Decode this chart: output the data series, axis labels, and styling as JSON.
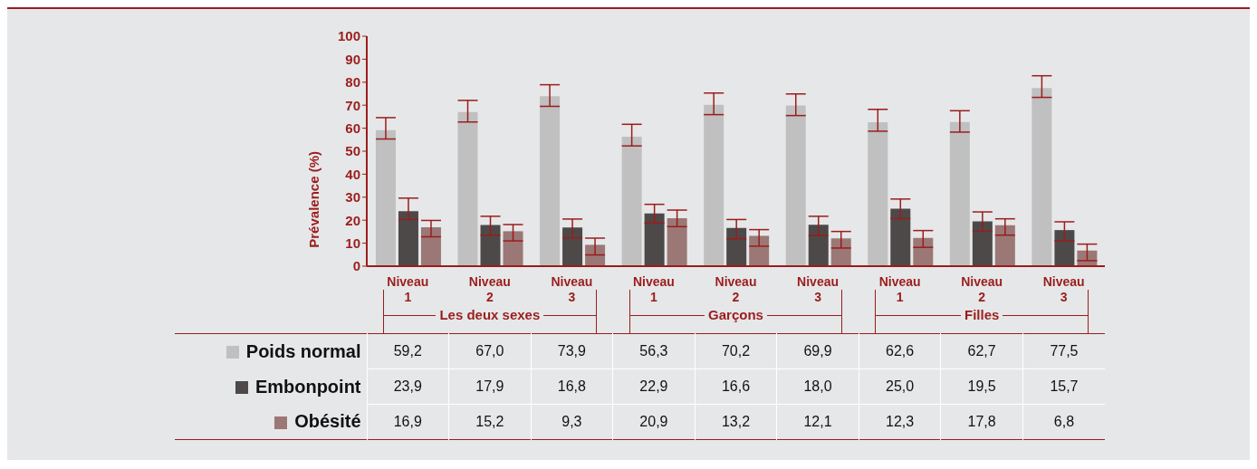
{
  "chart_data": {
    "type": "bar",
    "ylabel": "Prévalence (%)",
    "categories": [
      "Niveau 1",
      "Niveau 2",
      "Niveau 3",
      "Niveau 1",
      "Niveau 2",
      "Niveau 3",
      "Niveau 1",
      "Niveau 2",
      "Niveau 3"
    ],
    "series": [
      {
        "name": "Poids normal",
        "color": "#c0c0c0",
        "values": [
          59.2,
          67.0,
          73.9,
          56.3,
          70.2,
          69.9,
          62.6,
          62.7,
          77.5
        ],
        "value_labels": [
          "59,2",
          "67,0",
          "73,9",
          "56,3",
          "70,2",
          "69,9",
          "62,6",
          "62,7",
          "77,5"
        ],
        "errors": [
          [
            55.3,
            64.6
          ],
          [
            62.7,
            72.1
          ],
          [
            69.5,
            78.9
          ],
          [
            52.3,
            61.7
          ],
          [
            65.9,
            75.3
          ],
          [
            65.5,
            74.9
          ],
          [
            58.7,
            68.2
          ],
          [
            58.3,
            67.6
          ],
          [
            73.4,
            82.8
          ]
        ]
      },
      {
        "name": "Embonpoint",
        "color": "#4d4949",
        "values": [
          23.9,
          17.9,
          16.8,
          22.9,
          16.6,
          18.0,
          25.0,
          19.5,
          15.7
        ],
        "value_labels": [
          "23,9",
          "17,9",
          "16,8",
          "22,9",
          "16,6",
          "18,0",
          "25,0",
          "19,5",
          "15,7"
        ],
        "errors": [
          [
            20.3,
            29.6
          ],
          [
            13.5,
            21.7
          ],
          [
            12.3,
            20.5
          ],
          [
            18.8,
            26.9
          ],
          [
            11.9,
            20.3
          ],
          [
            13.3,
            21.7
          ],
          [
            20.7,
            29.2
          ],
          [
            15.2,
            23.6
          ],
          [
            11.0,
            19.3
          ]
        ]
      },
      {
        "name": "Obésité",
        "color": "#9b7875",
        "values": [
          16.9,
          15.2,
          9.3,
          20.9,
          13.2,
          12.1,
          12.3,
          17.8,
          6.8
        ],
        "value_labels": [
          "16,9",
          "15,2",
          "9,3",
          "20,9",
          "13,2",
          "12,1",
          "12,3",
          "17,8",
          "6,8"
        ],
        "errors": [
          [
            12.8,
            19.9
          ],
          [
            11.0,
            18.1
          ],
          [
            4.9,
            12.2
          ],
          [
            17.2,
            24.4
          ],
          [
            8.7,
            15.9
          ],
          [
            7.9,
            15.1
          ],
          [
            8.2,
            15.5
          ],
          [
            13.5,
            20.6
          ],
          [
            2.4,
            9.6
          ]
        ]
      }
    ],
    "annotations": [
      "Les deux sexes",
      "Garçons",
      "Filles"
    ],
    "ylim": [
      0,
      100
    ],
    "yticks": [
      0,
      10,
      20,
      30,
      40,
      50,
      60,
      70,
      80,
      90,
      100
    ],
    "grid": false,
    "legend": "bottom left"
  }
}
